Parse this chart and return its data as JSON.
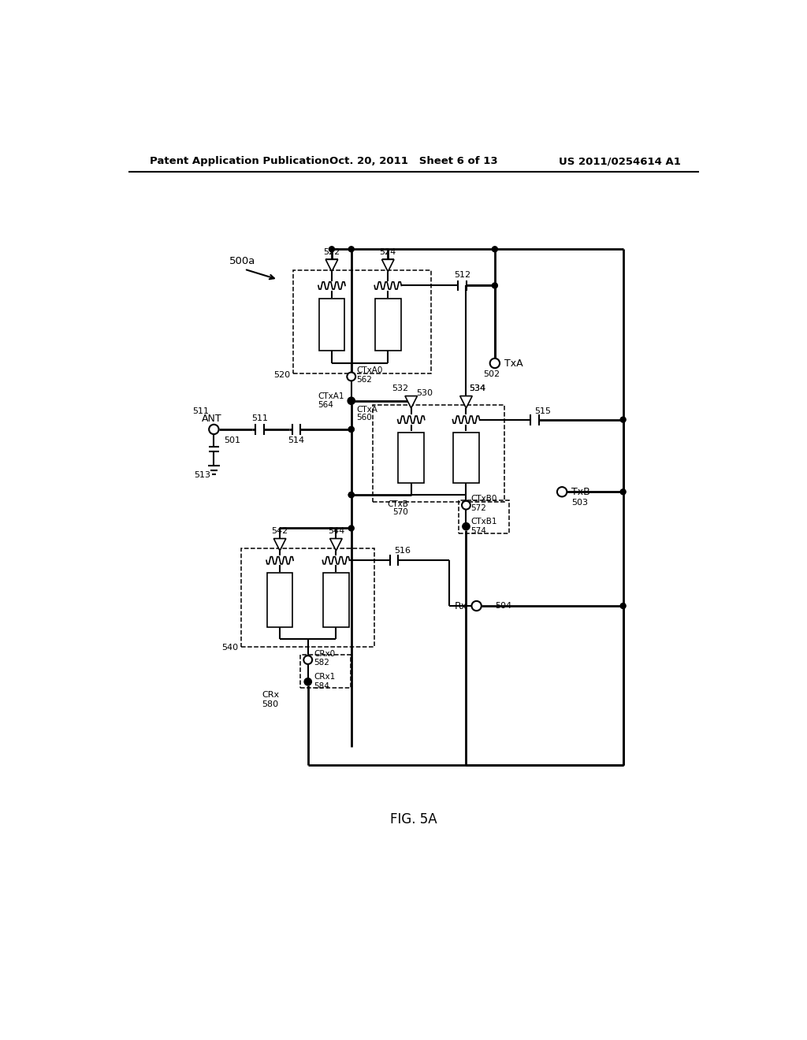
{
  "header_left": "Patent Application Publication",
  "header_mid": "Oct. 20, 2011   Sheet 6 of 13",
  "header_right": "US 2011/0254614 A1",
  "fig_label": "FIG. 5A"
}
